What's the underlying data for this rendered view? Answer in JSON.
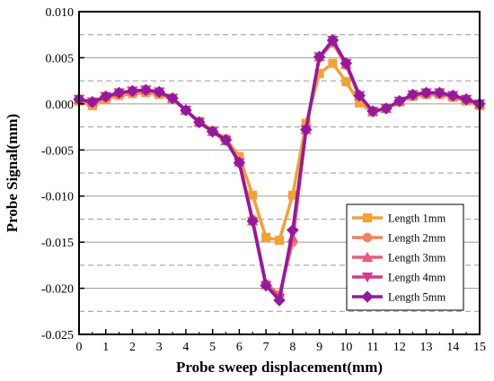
{
  "chart_data": {
    "type": "line",
    "xlabel": "Probe sweep displacement(mm)",
    "ylabel": "Probe Signal(mm)",
    "xlim": [
      0,
      15
    ],
    "ylim": [
      -0.025,
      0.01
    ],
    "x_ticks": [
      0,
      1,
      2,
      3,
      4,
      5,
      6,
      7,
      8,
      9,
      10,
      11,
      12,
      13,
      14,
      15
    ],
    "y_ticks": [
      0.01,
      0.005,
      0.0,
      -0.005,
      -0.01,
      -0.015,
      -0.02,
      -0.025
    ],
    "y_tick_labels": [
      "0.010",
      "0.005",
      "0.000",
      "-0.005",
      "-0.010",
      "-0.015",
      "-0.020",
      "-0.025"
    ],
    "grid": {
      "solid_y": [
        0.005,
        0.0,
        -0.005,
        -0.01,
        -0.015,
        -0.02
      ],
      "dashed_y": [
        0.0075,
        0.0025,
        -0.0025,
        -0.0075,
        -0.0125,
        -0.0175,
        -0.0225
      ]
    },
    "legend_position": "lower-right",
    "x": [
      0,
      0.5,
      1,
      1.5,
      2,
      2.5,
      3,
      3.5,
      4,
      4.5,
      5,
      5.5,
      6,
      6.5,
      7,
      7.5,
      8,
      8.5,
      9,
      9.5,
      10,
      10.5,
      11,
      11.5,
      12,
      12.5,
      13,
      13.5,
      14,
      14.5,
      15
    ],
    "series": [
      {
        "name": "Length 1mm",
        "color": "#f5a030",
        "marker": "square",
        "values": [
          0.0003,
          -0.0002,
          0.0005,
          0.0009,
          0.0011,
          0.0012,
          0.001,
          0.0005,
          -0.0007,
          -0.0019,
          -0.0029,
          -0.0038,
          -0.0057,
          -0.0099,
          -0.0145,
          -0.0148,
          -0.0099,
          -0.0021,
          0.0033,
          0.0044,
          0.0024,
          0.0001,
          -0.0009,
          -0.0005,
          0.0002,
          0.0008,
          0.001,
          0.001,
          0.0007,
          0.0003,
          -0.0002
        ]
      },
      {
        "name": "Length 2mm",
        "color": "#f5805a",
        "marker": "circle",
        "values": [
          0.0004,
          0.0001,
          0.0007,
          0.0011,
          0.0013,
          0.0014,
          0.0012,
          0.0006,
          -0.0007,
          -0.002,
          -0.003,
          -0.0039,
          -0.0062,
          -0.0125,
          -0.0195,
          -0.0207,
          -0.015,
          -0.0028,
          0.005,
          0.0066,
          0.0042,
          0.0008,
          -0.0008,
          -0.0005,
          0.0003,
          0.0009,
          0.0011,
          0.0011,
          0.0008,
          0.0004,
          -0.0001
        ]
      },
      {
        "name": "Length 3mm",
        "color": "#ee5a78",
        "marker": "triangle-up",
        "values": [
          0.0005,
          0.0002,
          0.0008,
          0.0012,
          0.0014,
          0.0015,
          0.0013,
          0.0006,
          -0.0007,
          -0.002,
          -0.003,
          -0.004,
          -0.0063,
          -0.0127,
          -0.0196,
          -0.0209,
          -0.0145,
          -0.0028,
          0.0051,
          0.0068,
          0.0043,
          0.0009,
          -0.0008,
          -0.0005,
          0.0003,
          0.001,
          0.0012,
          0.0012,
          0.0009,
          0.0005,
          0.0
        ]
      },
      {
        "name": "Length 4mm",
        "color": "#d8388a",
        "marker": "triangle-down",
        "values": [
          0.0005,
          0.0002,
          0.0008,
          0.0012,
          0.0014,
          0.0015,
          0.0013,
          0.0006,
          -0.0007,
          -0.002,
          -0.003,
          -0.004,
          -0.0064,
          -0.0128,
          -0.0197,
          -0.0211,
          -0.014,
          -0.0028,
          0.0051,
          0.0069,
          0.0044,
          0.0009,
          -0.0008,
          -0.0005,
          0.0003,
          0.001,
          0.0012,
          0.0012,
          0.0009,
          0.0005,
          0.0
        ]
      },
      {
        "name": "Length 5mm",
        "color": "#9418a0",
        "marker": "diamond",
        "values": [
          0.0005,
          0.0002,
          0.0008,
          0.0012,
          0.0014,
          0.0015,
          0.0013,
          0.0006,
          -0.0007,
          -0.002,
          -0.003,
          -0.0039,
          -0.0064,
          -0.0127,
          -0.0197,
          -0.0213,
          -0.0137,
          -0.0028,
          0.0051,
          0.0069,
          0.0044,
          0.0009,
          -0.0008,
          -0.0005,
          0.0003,
          0.001,
          0.0012,
          0.0012,
          0.0009,
          0.0005,
          0.0
        ]
      }
    ]
  }
}
